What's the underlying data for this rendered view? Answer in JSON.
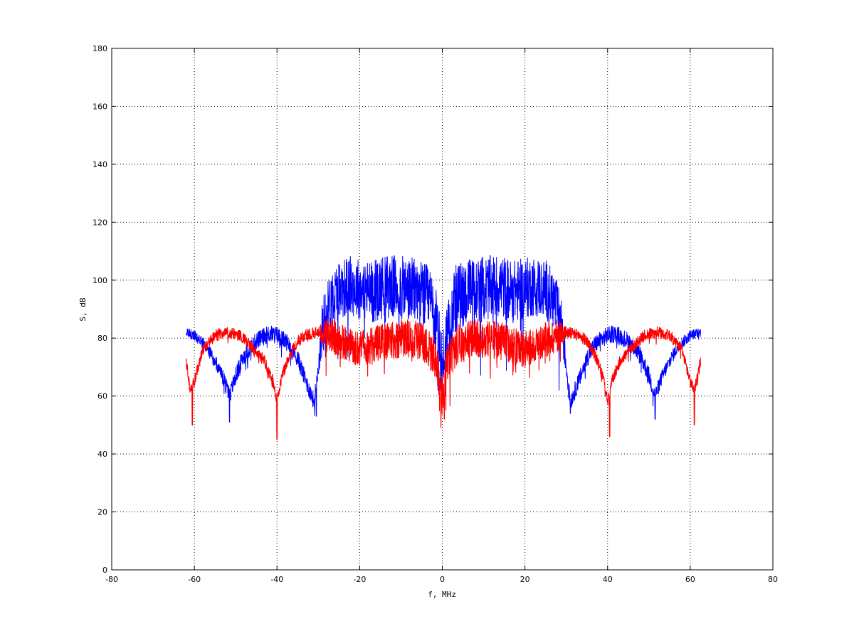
{
  "chart_data": {
    "type": "line",
    "title": "",
    "xlabel": "f, MHz",
    "ylabel": "S, dB",
    "xlim": [
      -80,
      80
    ],
    "ylim": [
      0,
      180
    ],
    "xticks": [
      -80,
      -60,
      -40,
      -20,
      0,
      20,
      40,
      60,
      80
    ],
    "yticks": [
      0,
      20,
      40,
      60,
      80,
      100,
      120,
      140,
      160,
      180
    ],
    "xtick_labels": [
      "-80",
      "-60",
      "-40",
      "-20",
      "0",
      "20",
      "40",
      "60",
      "80"
    ],
    "ytick_labels": [
      "0",
      "20",
      "40",
      "60",
      "80",
      "100",
      "120",
      "140",
      "160",
      "180"
    ],
    "grid": true,
    "legend": "none",
    "series": [
      {
        "color": "#0000ff",
        "x_range": [
          -62,
          62.5
        ],
        "envelope": [
          [
            -62,
            82
          ],
          [
            -60,
            81
          ],
          [
            -57,
            77
          ],
          [
            -55,
            72
          ],
          [
            -53,
            66
          ],
          [
            -51.5,
            60
          ],
          [
            -50,
            67
          ],
          [
            -48,
            74
          ],
          [
            -45,
            79
          ],
          [
            -42,
            81.5
          ],
          [
            -40,
            81
          ],
          [
            -37,
            78
          ],
          [
            -35,
            73
          ],
          [
            -33,
            65
          ],
          [
            -31,
            58
          ],
          [
            -30,
            70
          ],
          [
            -29,
            84
          ],
          [
            -27,
            93
          ],
          [
            -25,
            97
          ],
          [
            -22,
            98
          ],
          [
            -20,
            97
          ],
          [
            -17,
            96
          ],
          [
            -14,
            98
          ],
          [
            -10,
            97
          ],
          [
            -6,
            96
          ],
          [
            -3,
            93
          ],
          [
            -1.5,
            85
          ],
          [
            0,
            70
          ],
          [
            1.5,
            85
          ],
          [
            3,
            93
          ],
          [
            6,
            96
          ],
          [
            10,
            97
          ],
          [
            14,
            98
          ],
          [
            17,
            96
          ],
          [
            20,
            97
          ],
          [
            22,
            98
          ],
          [
            25,
            97
          ],
          [
            27,
            93
          ],
          [
            29,
            84
          ],
          [
            30,
            70
          ],
          [
            31,
            58
          ],
          [
            33,
            65
          ],
          [
            35,
            73
          ],
          [
            37,
            78
          ],
          [
            40,
            81
          ],
          [
            42,
            81.5
          ],
          [
            45,
            79
          ],
          [
            48,
            74
          ],
          [
            50,
            67
          ],
          [
            51.5,
            60
          ],
          [
            53,
            66
          ],
          [
            55,
            72
          ],
          [
            57,
            77
          ],
          [
            60,
            81
          ],
          [
            62.5,
            82
          ]
        ],
        "noise_dB": [
          [
            -62,
            1.5
          ],
          [
            -50,
            3
          ],
          [
            -30,
            3
          ],
          [
            -29,
            10
          ],
          [
            0,
            12
          ],
          [
            29,
            10
          ],
          [
            30,
            3
          ],
          [
            50,
            3
          ],
          [
            62.5,
            1.5
          ]
        ],
        "dips": [
          [
            -51.5,
            51
          ],
          [
            -30.5,
            53
          ],
          [
            -1,
            62
          ],
          [
            31,
            54
          ],
          [
            51.5,
            52
          ]
        ]
      },
      {
        "color": "#ff0000",
        "x_range": [
          -62,
          62.5
        ],
        "envelope": [
          [
            -62,
            72
          ],
          [
            -61,
            62
          ],
          [
            -60,
            65
          ],
          [
            -58,
            76
          ],
          [
            -55,
            81
          ],
          [
            -52,
            82
          ],
          [
            -49,
            81
          ],
          [
            -46,
            77
          ],
          [
            -43,
            72
          ],
          [
            -41,
            65
          ],
          [
            -40,
            58
          ],
          [
            -39,
            66
          ],
          [
            -37,
            74
          ],
          [
            -35,
            79
          ],
          [
            -33,
            81
          ],
          [
            -30,
            82
          ],
          [
            -26,
            80
          ],
          [
            -20,
            76
          ],
          [
            -14,
            79
          ],
          [
            -8,
            80
          ],
          [
            -4,
            78
          ],
          [
            -1.5,
            73
          ],
          [
            0,
            60
          ],
          [
            1.5,
            73
          ],
          [
            4,
            78
          ],
          [
            8,
            80
          ],
          [
            14,
            79
          ],
          [
            20,
            76
          ],
          [
            26,
            80
          ],
          [
            30,
            82
          ],
          [
            33,
            81
          ],
          [
            35,
            79
          ],
          [
            37,
            74
          ],
          [
            39,
            66
          ],
          [
            40,
            58
          ],
          [
            41,
            65
          ],
          [
            43,
            72
          ],
          [
            46,
            77
          ],
          [
            49,
            81
          ],
          [
            52,
            82
          ],
          [
            55,
            81
          ],
          [
            58,
            76
          ],
          [
            60,
            65
          ],
          [
            61,
            62
          ],
          [
            62.5,
            72
          ]
        ],
        "noise_dB": [
          [
            -62,
            2
          ],
          [
            -30,
            2
          ],
          [
            -28,
            6
          ],
          [
            0,
            7
          ],
          [
            28,
            6
          ],
          [
            30,
            2
          ],
          [
            62.5,
            2
          ]
        ],
        "dips": [
          [
            -60.5,
            50
          ],
          [
            -40,
            45
          ],
          [
            0.5,
            52
          ],
          [
            40.5,
            46
          ],
          [
            61,
            50
          ]
        ]
      }
    ]
  }
}
